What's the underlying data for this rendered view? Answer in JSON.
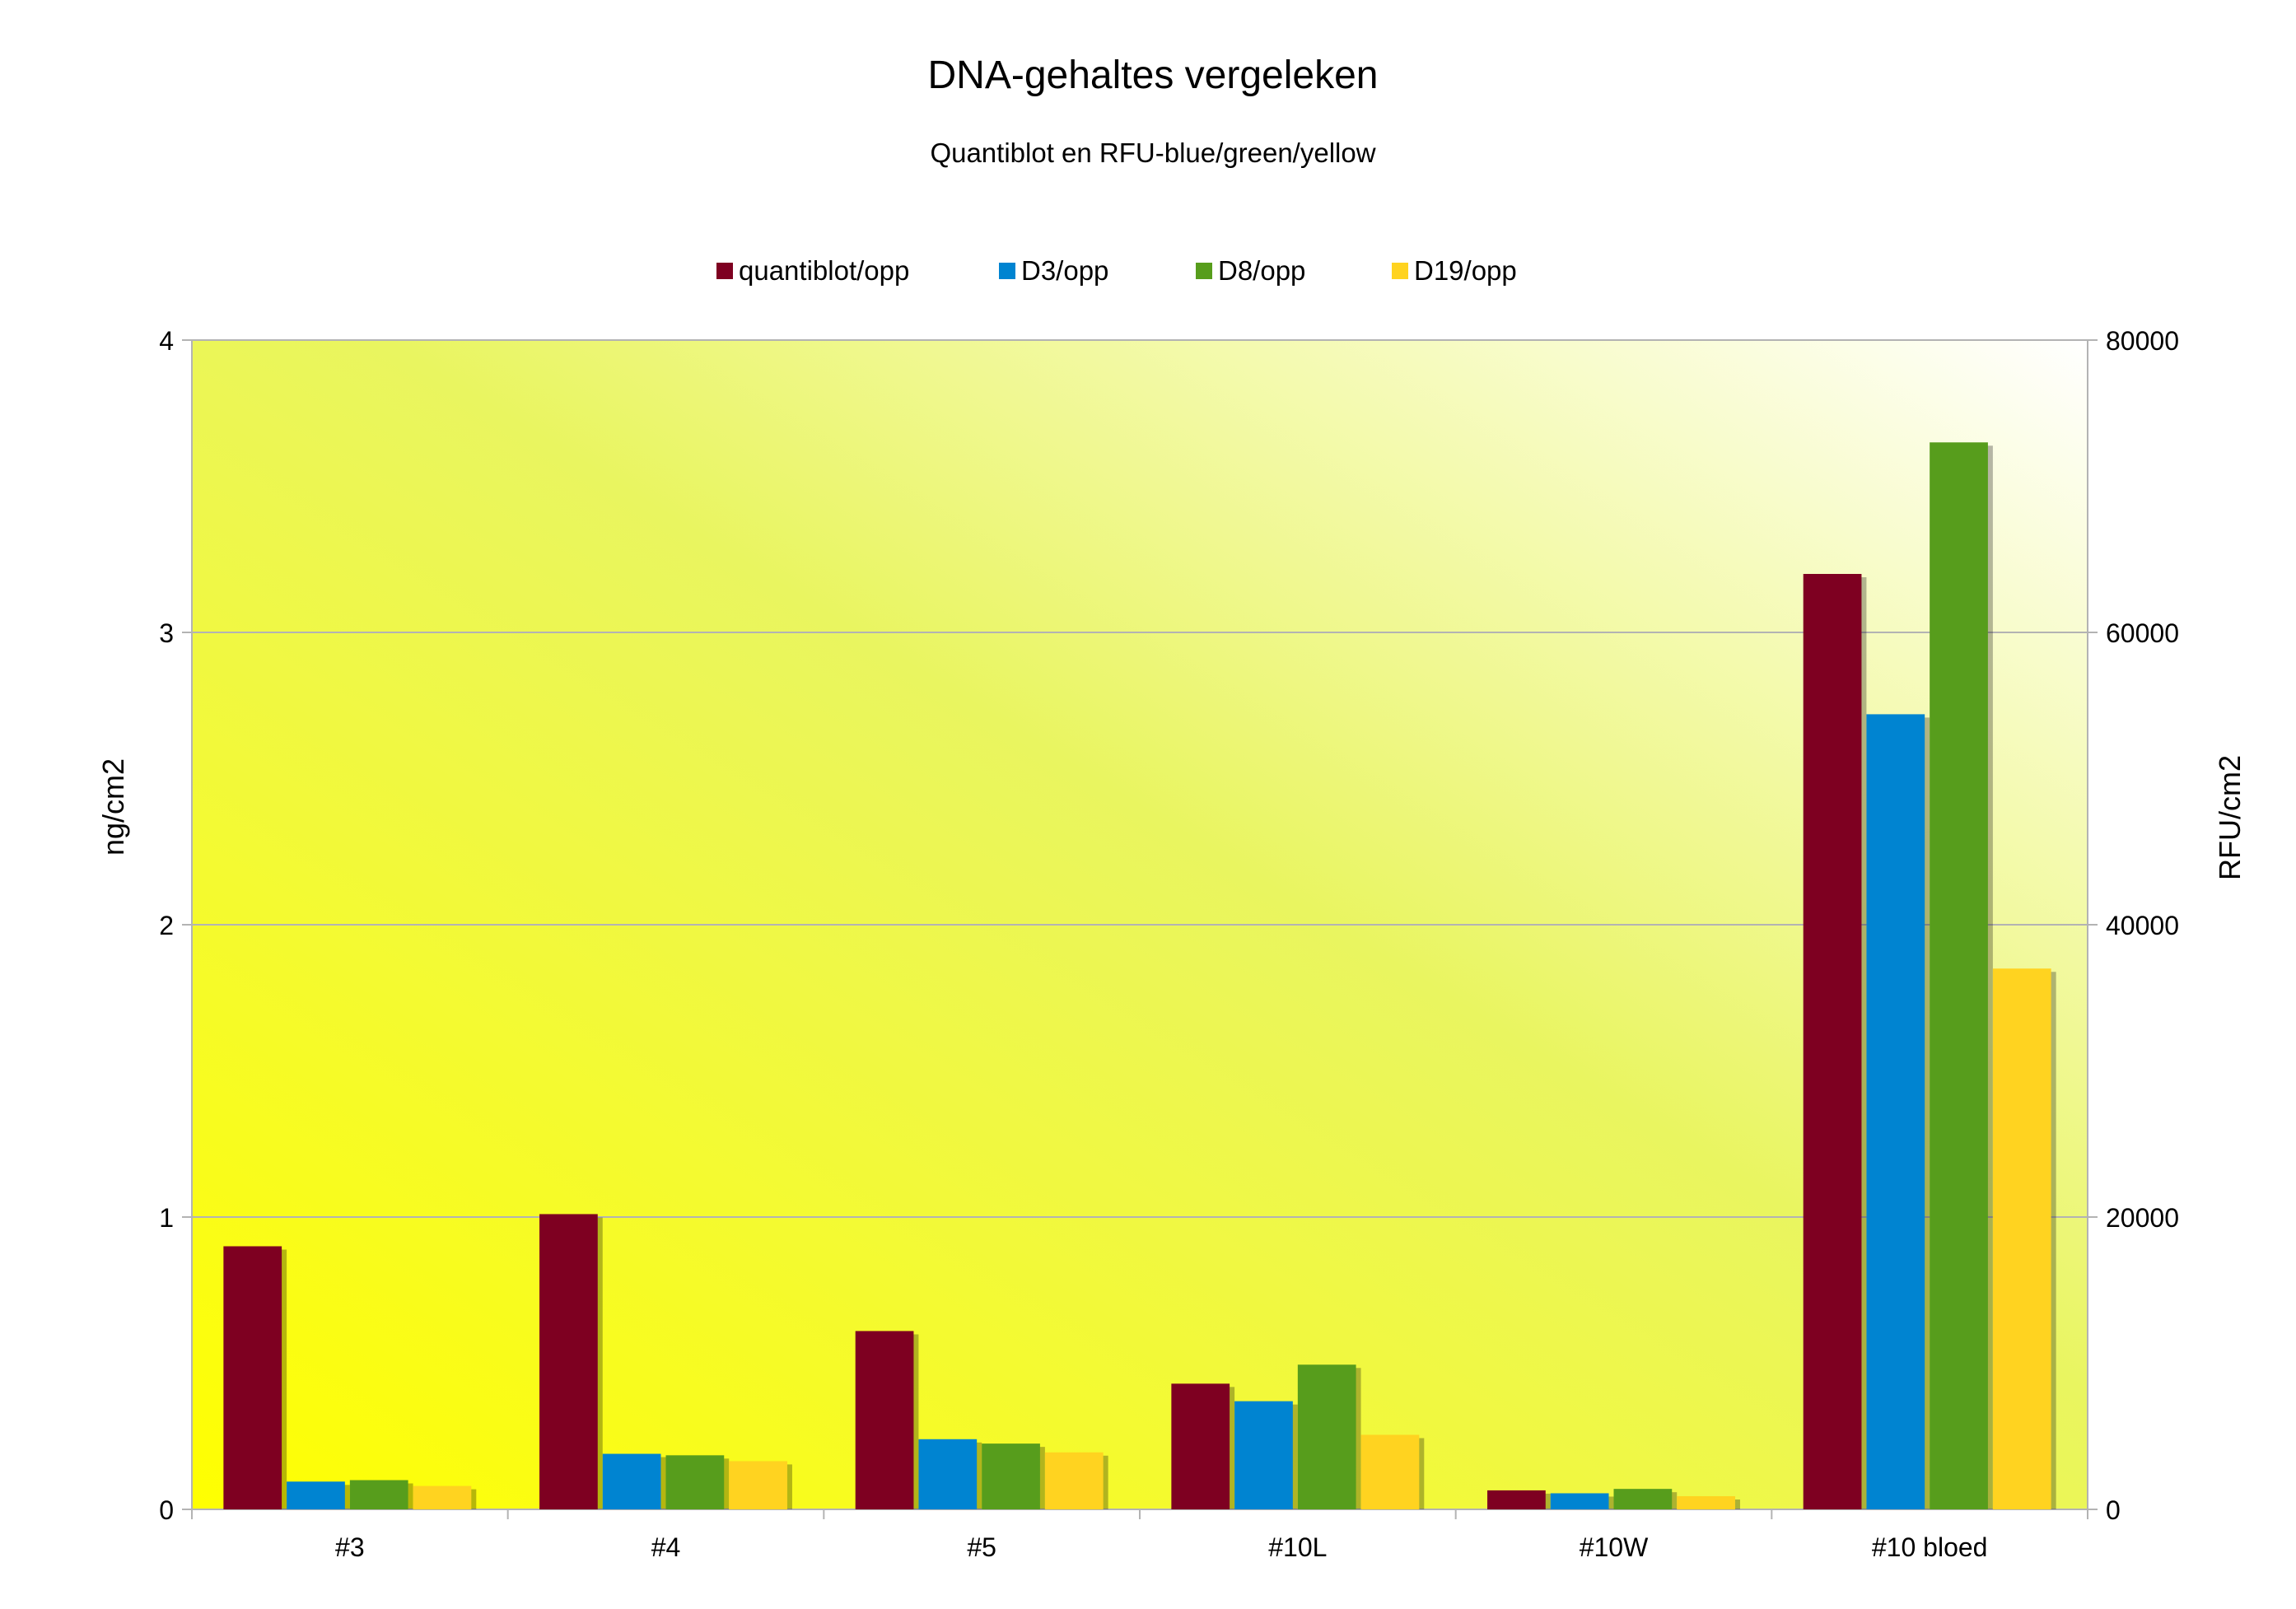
{
  "chart_data": {
    "type": "bar",
    "title": "DNA-gehaltes vergeleken",
    "subtitle": "Quantiblot en RFU-blue/green/yellow",
    "ylabel": "ng/cm2",
    "y2label": "RFU/cm2",
    "categories": [
      "#3",
      "#4",
      "#5",
      "#10L",
      "#10W",
      "#10 bloed"
    ],
    "ylim": [
      0,
      4
    ],
    "y2lim": [
      0,
      80000
    ],
    "yticks": [
      "0",
      "1",
      "2",
      "3",
      "4"
    ],
    "y2ticks": [
      "0",
      "20000",
      "40000",
      "60000",
      "80000"
    ],
    "grid": true,
    "legend_position": "top",
    "series": [
      {
        "name": "quantiblot/opp",
        "axis": "left",
        "color": "#7e0021",
        "values": [
          0.9,
          1.01,
          0.61,
          0.43,
          0.065,
          3.2
        ]
      },
      {
        "name": "D3/opp",
        "axis": "right",
        "color": "#0084d1",
        "values": [
          1900,
          3800,
          4800,
          7400,
          1100,
          54400
        ]
      },
      {
        "name": "D8/opp",
        "axis": "right",
        "color": "#579d1c",
        "values": [
          2000,
          3700,
          4500,
          9900,
          1400,
          73000
        ]
      },
      {
        "name": "D19/opp",
        "axis": "right",
        "color": "#ffd320",
        "values": [
          1600,
          3300,
          3900,
          5100,
          900,
          37000
        ]
      }
    ]
  }
}
